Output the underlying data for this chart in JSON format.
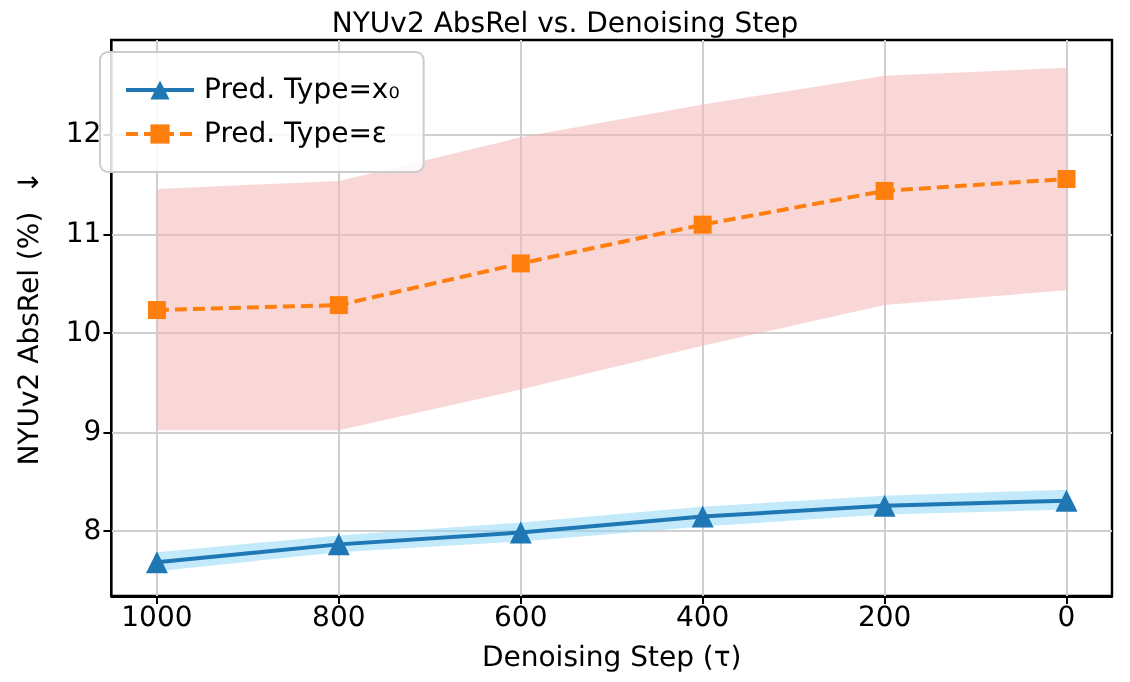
{
  "chart_data": {
    "type": "line",
    "title": "NYUv2 AbsRel vs. Denoising Step",
    "xlabel": "Denoising Step (τ)",
    "ylabel": "NYUv2 AbsRel (%)  ↓",
    "x": [
      1000,
      800,
      600,
      400,
      200,
      0
    ],
    "series": [
      {
        "name": "Pred. Type=x₀",
        "color": "#1f77b4",
        "marker": "triangle",
        "line_style": "solid",
        "values": [
          7.69,
          7.87,
          7.99,
          8.15,
          8.26,
          8.31
        ],
        "lower": [
          7.6,
          7.79,
          7.9,
          8.05,
          8.17,
          8.22
        ],
        "upper": [
          7.79,
          7.96,
          8.09,
          8.25,
          8.36,
          8.42
        ]
      },
      {
        "name": "Pred. Type=ε",
        "color": "#ff7f0e",
        "marker": "square",
        "line_style": "dashed",
        "values": [
          10.23,
          10.28,
          10.7,
          11.09,
          11.43,
          11.55
        ],
        "lower": [
          9.02,
          9.02,
          9.43,
          9.87,
          10.28,
          10.43
        ],
        "upper": [
          11.45,
          11.53,
          11.97,
          12.3,
          12.59,
          12.67
        ]
      }
    ],
    "xlim": [
      1050,
      -50
    ],
    "xticks": [
      1000,
      800,
      600,
      400,
      200,
      0
    ],
    "ylim": [
      7.35,
      12.95
    ],
    "yticks": [
      8,
      9,
      10,
      11,
      12
    ],
    "grid": true,
    "legend": "top left"
  }
}
